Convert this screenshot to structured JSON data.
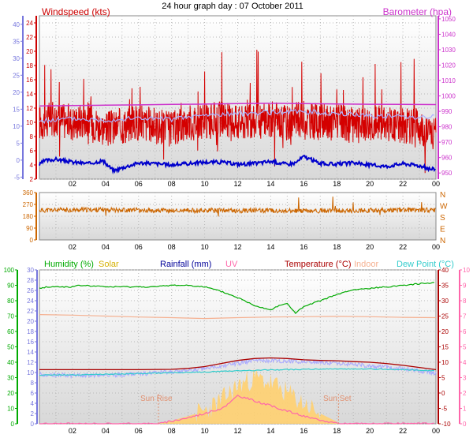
{
  "title": "24 hour graph day : 07 October 2011",
  "colors": {
    "windspeed": "#d40000",
    "windspeed_avg": "#0000cc",
    "windspeed_avg_light": "#aab0ff",
    "barometer": "#cc33cc",
    "direction": "#cc6600",
    "humidity": "#00aa00",
    "solar": "#ffd070",
    "rainfall": "#000099",
    "uv": "#ff66aa",
    "temperature": "#aa0000",
    "indoor": "#f5b090",
    "dewpoint": "#33cccc",
    "apparent": "#aaaaff",
    "axis_blue": "#7777dd",
    "axis_green": "#00aa00",
    "axis_pink": "#ff66aa"
  },
  "chart_data": [
    {
      "type": "line",
      "name": "wind-barometer",
      "legend": {
        "left": "Windspeed (kts)",
        "right": "Barometer (hpa)"
      },
      "x_ticks": [
        "02",
        "04",
        "06",
        "08",
        "10",
        "12",
        "14",
        "16",
        "18",
        "20",
        "22",
        "00"
      ],
      "x_range_hours": [
        0,
        24
      ],
      "y_left_ticks": [
        "2",
        "4",
        "6",
        "8",
        "10",
        "12",
        "14",
        "16",
        "18",
        "20",
        "22",
        "24"
      ],
      "ylim_left": [
        2,
        25
      ],
      "y_outer_ticks": [
        "-5",
        "0",
        "5",
        "10",
        "15",
        "20",
        "25",
        "30",
        "35",
        "40"
      ],
      "y_right_ticks": [
        "950",
        "960",
        "970",
        "980",
        "990",
        "1000",
        "1010",
        "1020",
        "1030",
        "1040",
        "1050"
      ],
      "ylim_right": [
        946,
        1052
      ],
      "series": [
        {
          "name": "Windspeed (kts)",
          "axis": "left",
          "style": "noisy",
          "x": [
            0,
            1,
            2,
            3,
            4,
            5,
            6,
            7,
            8,
            9,
            10,
            11,
            12,
            13,
            14,
            15,
            16,
            17,
            18,
            19,
            20,
            21,
            22,
            23,
            24
          ],
          "y": [
            10,
            10.5,
            10,
            10.5,
            9,
            9.5,
            10,
            9.5,
            9,
            10,
            10,
            10.5,
            10,
            10,
            10.5,
            10,
            10.5,
            10,
            10,
            9.5,
            10,
            10,
            9.5,
            9.5,
            8
          ]
        },
        {
          "name": "average",
          "axis": "left",
          "x": [
            0,
            0.3,
            1,
            2,
            3,
            3.8,
            4.5,
            5,
            6,
            7,
            8,
            9,
            10,
            11,
            12,
            13,
            14,
            15,
            15.5,
            16,
            17,
            18,
            19,
            20,
            21,
            22,
            23,
            23.7,
            24
          ],
          "y": [
            4,
            4.6,
            4.8,
            4.4,
            4.2,
            4.6,
            3.2,
            3.6,
            4.3,
            4.2,
            4,
            4.2,
            4.4,
            4.4,
            4.1,
            4.2,
            4.5,
            4.1,
            4.3,
            5.2,
            4.2,
            4.1,
            4.3,
            4,
            3.8,
            4.2,
            3.9,
            3.4,
            3.5
          ]
        },
        {
          "name": "gust-light",
          "axis": "left",
          "x": [
            0,
            2,
            4,
            6,
            8,
            10,
            12,
            14,
            16,
            18,
            20,
            22,
            24
          ],
          "y": [
            10.2,
            10.5,
            10.3,
            10.6,
            10.4,
            11,
            11.2,
            11.4,
            11.5,
            11.2,
            11,
            10.8,
            10.8
          ]
        },
        {
          "name": "Barometer (hpa)",
          "axis": "right",
          "x": [
            0,
            2,
            4,
            6,
            8,
            10,
            12,
            14,
            16,
            18,
            20,
            22,
            24
          ],
          "y": [
            993.5,
            993.8,
            994,
            994.2,
            994.5,
            994.7,
            995,
            995.2,
            995,
            994.8,
            994.6,
            994.5,
            994.4
          ]
        }
      ]
    },
    {
      "type": "line",
      "name": "wind-direction",
      "y_ticks": [
        "0",
        "90",
        "180",
        "270",
        "360"
      ],
      "ylim": [
        0,
        360
      ],
      "y_right_letters": [
        "N",
        "W",
        "S",
        "E",
        "N"
      ],
      "series": [
        {
          "name": "direction",
          "style": "noisy",
          "x": [
            0,
            2,
            4,
            6,
            8,
            10,
            12,
            14,
            16,
            18,
            20,
            22,
            24
          ],
          "y": [
            225,
            228,
            230,
            226,
            222,
            225,
            222,
            224,
            220,
            222,
            225,
            228,
            226
          ]
        }
      ]
    },
    {
      "type": "line",
      "name": "temperature-humidity",
      "legend": [
        "Humidity (%)",
        "Solar",
        "Rainfall (mm)",
        "UV",
        "Temperature (°C)",
        "Indoor",
        "Dew Point (°C)"
      ],
      "y_hum_ticks": [
        "0",
        "10",
        "20",
        "30",
        "40",
        "50",
        "60",
        "70",
        "80",
        "90",
        "100"
      ],
      "ylim_hum": [
        0,
        100
      ],
      "y_rain_ticks": [
        "0",
        "2",
        "4",
        "6",
        "8",
        "10",
        "12",
        "14",
        "16",
        "18",
        "20",
        "22",
        "24",
        "26",
        "28",
        "30"
      ],
      "ylim_rain": [
        0,
        30
      ],
      "y_temp_ticks": [
        "-10",
        "-5",
        "0",
        "5",
        "10",
        "15",
        "20",
        "25",
        "30",
        "35",
        "40"
      ],
      "ylim_temp": [
        -10,
        40
      ],
      "y_uv_ticks": [
        "0",
        "1",
        "2",
        "3",
        "4",
        "5",
        "6",
        "7",
        "8",
        "9",
        "10"
      ],
      "ylim_uv": [
        0,
        10
      ],
      "annotations": {
        "sunrise": "Sun Rise",
        "sunset": "Sun Set"
      },
      "sunrise_hour": 7.2,
      "sunset_hour": 18.1,
      "series": [
        {
          "name": "Humidity (%)",
          "axis": "hum",
          "x": [
            0,
            0.5,
            2,
            2.5,
            4,
            6,
            7,
            8,
            9,
            10,
            11,
            12,
            13,
            14,
            14.5,
            15,
            15.5,
            16,
            17,
            18,
            19,
            20,
            21,
            22,
            23,
            24
          ],
          "y": [
            88,
            89,
            89,
            90,
            89,
            89,
            89,
            90,
            90,
            89,
            86,
            82,
            77,
            74,
            77,
            78,
            72,
            76,
            80,
            84,
            87,
            88,
            89,
            90,
            91,
            92
          ]
        },
        {
          "name": "Indoor",
          "axis": "temp",
          "x": [
            0,
            2,
            4,
            6,
            8,
            10,
            12,
            14,
            16,
            18,
            20,
            22,
            24
          ],
          "y": [
            25.5,
            25.3,
            25,
            24.7,
            24.5,
            24.2,
            24.5,
            24.7,
            24.8,
            24.9,
            24.8,
            24.6,
            24.5
          ]
        },
        {
          "name": "Temperature (°C)",
          "axis": "temp",
          "x": [
            0,
            2,
            4,
            6,
            8,
            9,
            10,
            11,
            12,
            13,
            14,
            15,
            16,
            17,
            18,
            19,
            20,
            21,
            22,
            23,
            24
          ],
          "y": [
            7.6,
            7.6,
            7.6,
            7.6,
            7.7,
            8,
            8.6,
            9.6,
            10.6,
            11.2,
            11.4,
            11.2,
            10.8,
            10.6,
            10.5,
            10.2,
            10,
            9.6,
            9,
            8.3,
            7.6
          ]
        },
        {
          "name": "apparent",
          "axis": "temp",
          "style": "noisy",
          "x": [
            0,
            2,
            4,
            6,
            8,
            9,
            10,
            11,
            12,
            13,
            14,
            15,
            16,
            17,
            18,
            19,
            20,
            21,
            22,
            23,
            24
          ],
          "y": [
            6,
            5.7,
            5.8,
            6.2,
            6.8,
            7.3,
            7.9,
            8.7,
            9.7,
            10.4,
            10.6,
            10.4,
            10.2,
            9.9,
            9.6,
            9.2,
            8.8,
            8.4,
            7.8,
            7.2,
            6.4
          ]
        },
        {
          "name": "Dew Point (°C)",
          "axis": "temp",
          "x": [
            0,
            2,
            4,
            6,
            8,
            10,
            12,
            14,
            16,
            18,
            20,
            22,
            24
          ],
          "y": [
            5.8,
            5.9,
            6.1,
            6.3,
            6.6,
            6.8,
            7.2,
            7.5,
            7.7,
            7.8,
            7.8,
            7.6,
            7.2
          ]
        },
        {
          "name": "Solar",
          "axis": "rain",
          "style": "area",
          "x": [
            7.2,
            8,
            9,
            10,
            11,
            12,
            13,
            14,
            15,
            16,
            17,
            18,
            18.1
          ],
          "y": [
            0,
            0.6,
            1.5,
            2.5,
            4.5,
            7.5,
            9,
            8,
            6,
            4,
            2,
            0.4,
            0
          ]
        },
        {
          "name": "UV",
          "axis": "rain",
          "x": [
            7.2,
            8,
            9,
            10,
            11,
            11.5,
            12,
            13,
            14,
            15,
            16,
            17,
            18,
            18.1
          ],
          "y": [
            0,
            0.5,
            1.2,
            2,
            3,
            4,
            5.5,
            4.5,
            3.5,
            2.5,
            1.5,
            0.6,
            0.2,
            0
          ]
        }
      ]
    }
  ]
}
